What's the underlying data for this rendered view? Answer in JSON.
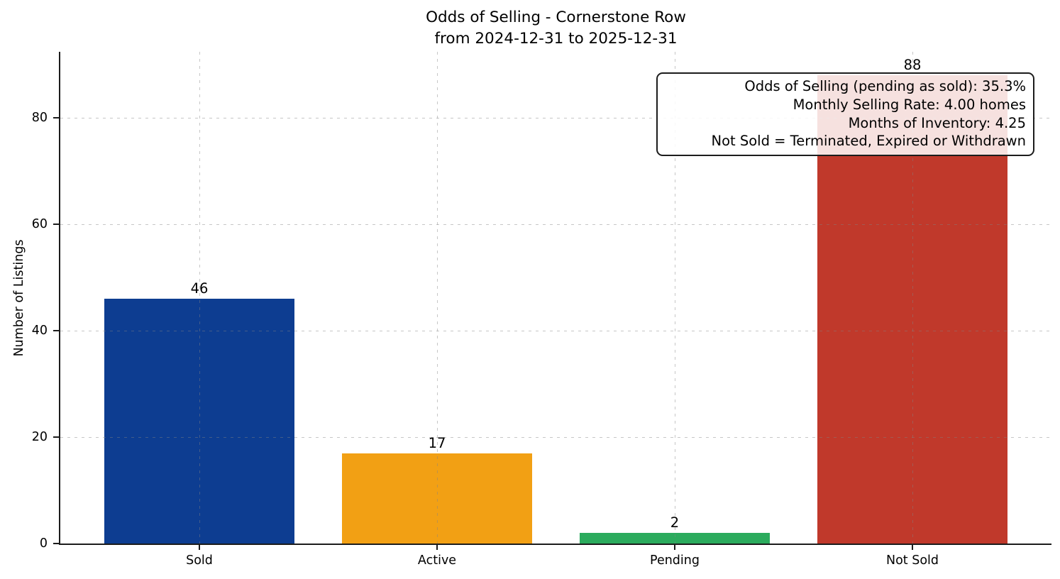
{
  "figure": {
    "background": "#ffffff"
  },
  "chart_data": {
    "type": "bar",
    "title": "Odds of Selling - Cornerstone Row",
    "subtitle": "from 2024-12-31 to 2025-12-31",
    "xlabel": "",
    "ylabel": "Number of Listings",
    "categories": [
      "Sold",
      "Active",
      "Pending",
      "Not Sold"
    ],
    "values": [
      46,
      17,
      2,
      88
    ],
    "value_labels": [
      "46",
      "17",
      "2",
      "88"
    ],
    "bar_colors": [
      "#0d3d91",
      "#f2a014",
      "#2bab5d",
      "#c0392b"
    ],
    "ylim": [
      0,
      92.4
    ],
    "yticks": [
      0,
      20,
      40,
      60,
      80
    ],
    "grid": {
      "style": "dashed",
      "axes": "both"
    },
    "legend": "none",
    "annotation_position": "top-right",
    "annotation_lines": [
      "Odds of Selling (pending as sold): 35.3%",
      "Monthly Selling Rate: 4.00 homes",
      "Months of Inventory: 4.25",
      "Not Sold = Terminated, Expired or Withdrawn"
    ]
  },
  "colors": {
    "axis": "#1c1c1c",
    "text": "#000000"
  }
}
